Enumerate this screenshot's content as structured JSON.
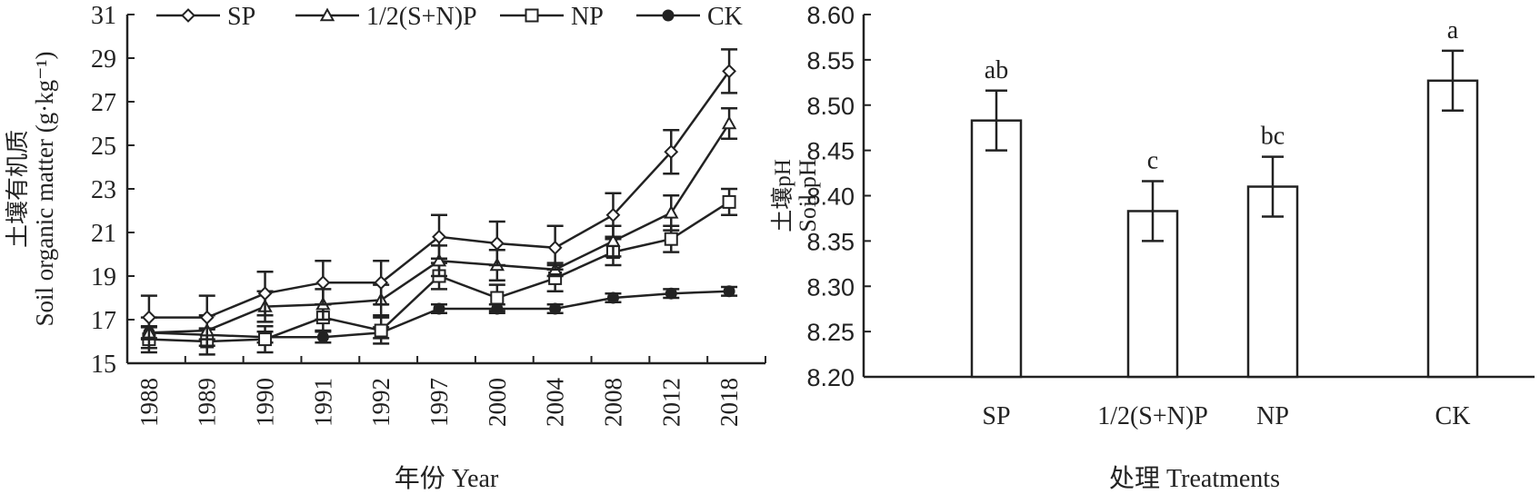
{
  "chart_data": [
    {
      "type": "line",
      "xlabel": "年份 Year",
      "ylabel_cn": "土壤有机质",
      "ylabel": "Soil organic matter (g·kg⁻¹)",
      "ylim": [
        15,
        31
      ],
      "yticks": [
        15,
        17,
        19,
        21,
        23,
        25,
        27,
        29,
        31
      ],
      "categories": [
        "1988",
        "1989",
        "1990",
        "1991",
        "1992",
        "1997",
        "2000",
        "2004",
        "2008",
        "2012",
        "2018"
      ],
      "legend_position": "top",
      "series": [
        {
          "name": "SP",
          "marker": "diamond-open",
          "values": [
            17.1,
            17.1,
            18.2,
            18.7,
            18.7,
            20.8,
            20.5,
            20.3,
            21.8,
            24.7,
            28.4
          ],
          "errors": [
            1.0,
            1.0,
            1.0,
            1.0,
            1.0,
            1.0,
            1.0,
            1.0,
            1.0,
            1.0,
            1.0
          ]
        },
        {
          "name": "1/2(S+N)P",
          "marker": "triangle-open",
          "values": [
            16.4,
            16.5,
            17.6,
            17.7,
            17.9,
            19.7,
            19.5,
            19.3,
            20.6,
            21.9,
            26.0
          ],
          "errors": [
            0.7,
            0.7,
            0.7,
            0.7,
            0.7,
            0.7,
            0.7,
            0.3,
            0.7,
            0.8,
            0.7
          ]
        },
        {
          "name": "NP",
          "marker": "square-open",
          "values": [
            16.1,
            16.0,
            16.1,
            17.1,
            16.5,
            19.0,
            18.0,
            18.9,
            20.1,
            20.7,
            22.4
          ],
          "errors": [
            0.6,
            0.6,
            0.6,
            0.6,
            0.6,
            0.6,
            0.6,
            0.6,
            0.6,
            0.6,
            0.6
          ]
        },
        {
          "name": "CK",
          "marker": "circle-filled",
          "values": [
            16.4,
            16.3,
            16.2,
            16.2,
            16.4,
            17.5,
            17.5,
            17.5,
            18.0,
            18.2,
            18.3
          ],
          "errors": [
            0.25,
            0.25,
            0.25,
            0.25,
            0.25,
            0.2,
            0.2,
            0.2,
            0.2,
            0.2,
            0.2
          ]
        }
      ]
    },
    {
      "type": "bar",
      "xlabel": "处理 Treatments",
      "ylabel_cn": "土壤pH",
      "ylabel": "Soil pH",
      "ylim": [
        8.2,
        8.6
      ],
      "yticks": [
        "8.20",
        "8.25",
        "8.30",
        "8.35",
        "8.40",
        "8.45",
        "8.50",
        "8.55",
        "8.60"
      ],
      "categories": [
        "SP",
        "1/2(S+N)P",
        "NP",
        "CK"
      ],
      "values": [
        8.483,
        8.383,
        8.41,
        8.527
      ],
      "errors": [
        0.033,
        0.033,
        0.033,
        0.033
      ],
      "significance": [
        "ab",
        "c",
        "bc",
        "a"
      ]
    }
  ]
}
